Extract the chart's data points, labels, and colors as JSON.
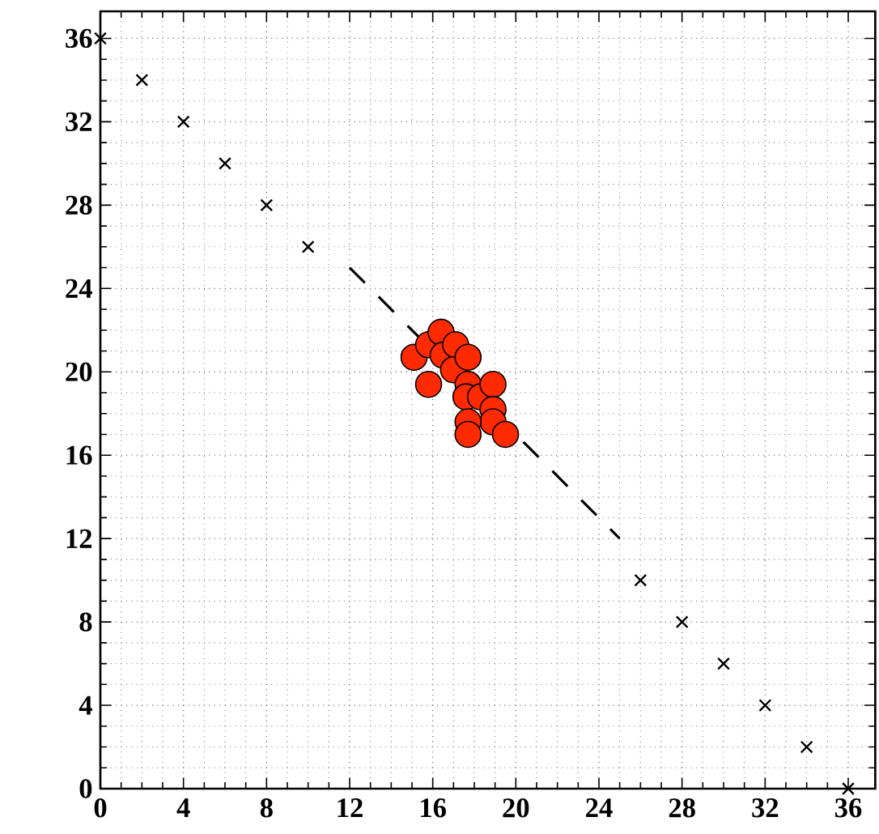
{
  "chart_data": {
    "type": "scatter",
    "xlim": [
      0,
      37.3
    ],
    "ylim": [
      0,
      37.3
    ],
    "xticks": [
      0,
      4,
      8,
      12,
      16,
      20,
      24,
      28,
      32,
      36
    ],
    "yticks": [
      0,
      4,
      8,
      12,
      16,
      20,
      24,
      28,
      32,
      36
    ],
    "grid": true,
    "series": [
      {
        "marker": "cross",
        "color": "#000000",
        "x": [
          0,
          2,
          4,
          6,
          8,
          10,
          26,
          28,
          30,
          32,
          34,
          36
        ],
        "values": [
          36,
          34,
          32,
          30,
          28,
          26,
          10,
          8,
          6,
          4,
          2,
          0
        ]
      },
      {
        "type": "line",
        "marker": "none",
        "line_style": "dashed",
        "color": "#000000",
        "x": [
          12,
          25
        ],
        "values": [
          25,
          12
        ]
      },
      {
        "marker": "circle",
        "color": "#ff2a00",
        "x": [
          15.1,
          15.8,
          15.8,
          16.4,
          16.5,
          17.1,
          17.0,
          17.7,
          17.7,
          17.6,
          18.3,
          18.9,
          18.9,
          18.9,
          17.7,
          17.7,
          19.5
        ],
        "values": [
          20.7,
          19.4,
          21.3,
          21.9,
          20.8,
          21.3,
          20.1,
          20.7,
          19.4,
          18.8,
          18.8,
          19.4,
          18.2,
          17.6,
          17.6,
          17.0,
          17.0
        ]
      }
    ]
  }
}
